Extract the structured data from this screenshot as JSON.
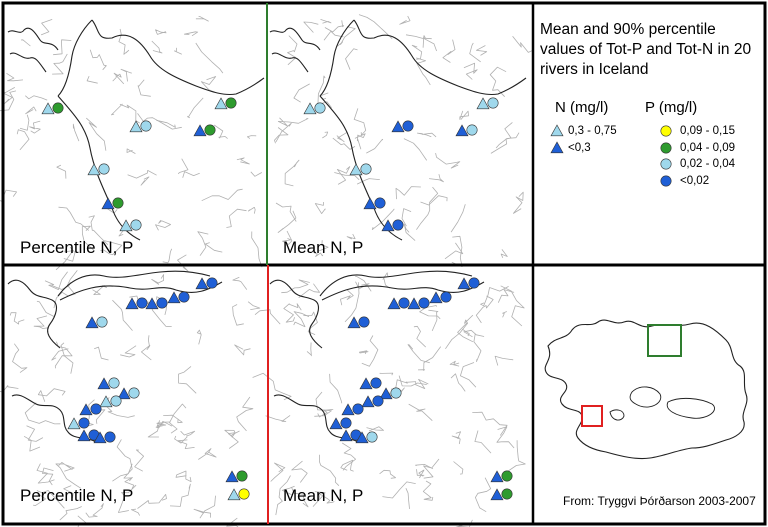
{
  "title": "Mean and 90% percentile values of Tot-P and Tot-N in 20 rivers in Iceland",
  "legend": {
    "n_heading": "N (mg/l)",
    "p_heading": "P (mg/l)",
    "n_classes": [
      {
        "label": "0,3 - 0,75",
        "color": "#9fd8ec"
      },
      {
        "label": "<0,3",
        "color": "#1f5fd6"
      }
    ],
    "p_classes": [
      {
        "label": "0,09 - 0,15",
        "color": "#ffff00"
      },
      {
        "label": "0,04 - 0,09",
        "color": "#2e9b2e"
      },
      {
        "label": "0,02 - 0,04",
        "color": "#9fd8ec"
      },
      {
        "label": "<0,02",
        "color": "#1f5fd6"
      }
    ]
  },
  "panels": {
    "top_left_label": "Percentile N, P",
    "top_right_label": "Mean N, P",
    "bottom_left_label": "Percentile N, P",
    "bottom_right_label": "Mean N, P"
  },
  "credit": "From: Tryggvi Þórðarson 2003-2007",
  "colors": {
    "north_frame": "#2e7d2e",
    "south_frame": "#e02020",
    "coast": "#222222",
    "river": "#b0b0b0"
  }
}
